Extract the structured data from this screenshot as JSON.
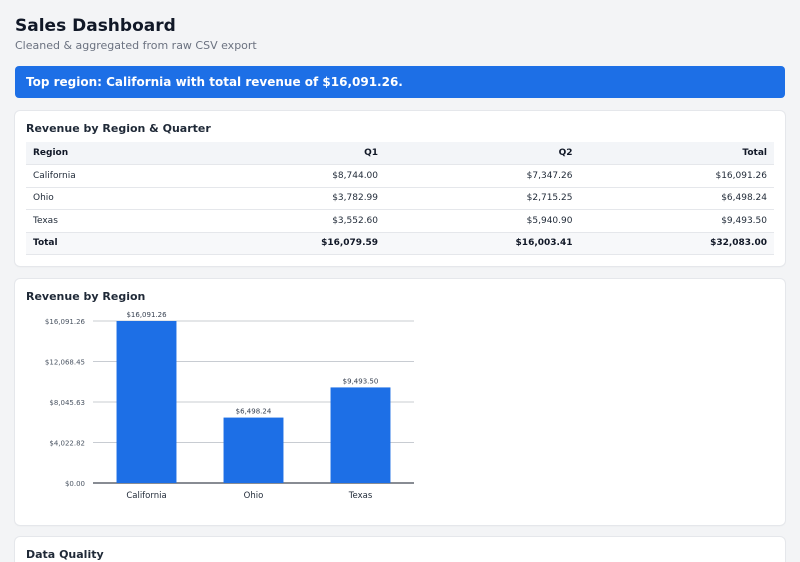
{
  "header": {
    "title": "Sales Dashboard",
    "subtitle": "Cleaned & aggregated from raw CSV export"
  },
  "banner": {
    "text": "Top region: California with total revenue of $16,091.26."
  },
  "revenue_table": {
    "title": "Revenue by Region & Quarter",
    "columns": [
      "Region",
      "Q1",
      "Q2",
      "Total"
    ],
    "rows": [
      [
        "California",
        "$8,744.00",
        "$7,347.26",
        "$16,091.26"
      ],
      [
        "Ohio",
        "$3,782.99",
        "$2,715.25",
        "$6,498.24"
      ],
      [
        "Texas",
        "$3,552.60",
        "$5,940.90",
        "$9,493.50"
      ]
    ],
    "total_row": [
      "Total",
      "$16,079.59",
      "$16,003.41",
      "$32,083.00"
    ]
  },
  "chart_section": {
    "title": "Revenue by Region"
  },
  "chart_data": {
    "type": "bar",
    "title": "Revenue by Region",
    "categories": [
      "California",
      "Ohio",
      "Texas"
    ],
    "values": [
      16091.26,
      6498.24,
      9493.5
    ],
    "value_labels": [
      "$16,091.26",
      "$6,498.24",
      "$9,493.50"
    ],
    "y_ticks": [
      0,
      4022.82,
      8045.63,
      12068.45,
      16091.26
    ],
    "y_tick_labels": [
      "$0.00",
      "$4,022.82",
      "$8,045.63",
      "$12,068.45",
      "$16,091.26"
    ],
    "ylim": [
      0,
      16091.26
    ],
    "grid": true,
    "bar_color": "#1d6fe6"
  },
  "quality_section": {
    "title": "Data Quality"
  },
  "colors": {
    "accent": "#1d6fe6",
    "background": "#f3f4f6"
  }
}
